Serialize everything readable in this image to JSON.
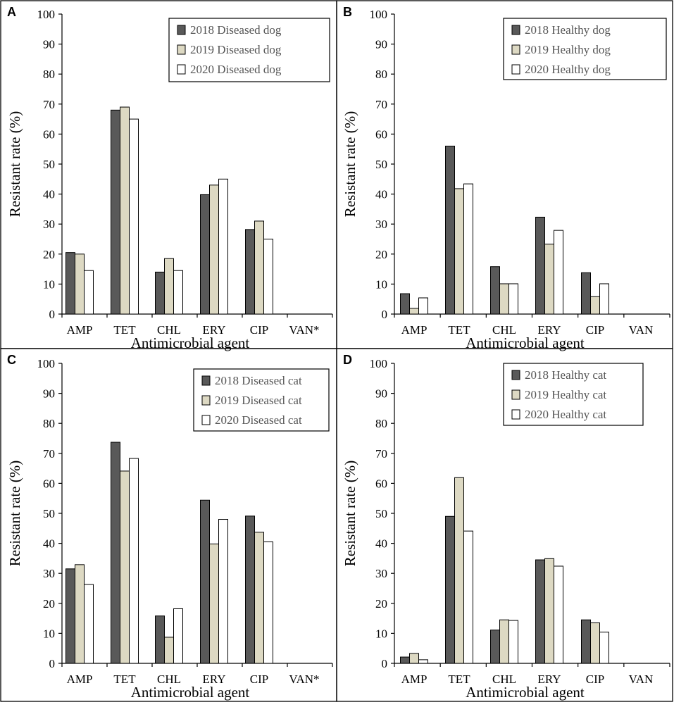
{
  "colors": {
    "s2018": "#595959",
    "s2019": "#ddd9c3",
    "s2020": "#ffffff",
    "frame": "#000000"
  },
  "chart_data": [
    {
      "panel": "A",
      "type": "bar",
      "categories": [
        "AMP",
        "TET",
        "CHL",
        "ERY",
        "CIP",
        "VAN*"
      ],
      "series": [
        {
          "name": "2018 Diseased dog",
          "values": [
            20.5,
            68,
            14,
            39.8,
            28.2,
            0
          ]
        },
        {
          "name": "2019 Diseased dog",
          "values": [
            20,
            69,
            18.5,
            43,
            31,
            0
          ]
        },
        {
          "name": "2020 Diseased dog",
          "values": [
            14.5,
            65,
            14.5,
            45,
            25,
            0
          ]
        }
      ],
      "xlabel": "Antimicrobial agent",
      "ylabel": "Resistant rate (%)",
      "ylim": [
        0,
        100
      ],
      "yticks": [
        0,
        10,
        20,
        30,
        40,
        50,
        60,
        70,
        80,
        90,
        100
      ],
      "legend_position": "top-right"
    },
    {
      "panel": "B",
      "type": "bar",
      "categories": [
        "AMP",
        "TET",
        "CHL",
        "ERY",
        "CIP",
        "VAN"
      ],
      "series": [
        {
          "name": "2018 Healthy dog",
          "values": [
            6.8,
            56,
            15.8,
            32.3,
            13.8,
            0
          ]
        },
        {
          "name": "2019 Healthy dog",
          "values": [
            1.9,
            41.8,
            10.1,
            23.3,
            5.8,
            0
          ]
        },
        {
          "name": "2020 Healthy dog",
          "values": [
            5.4,
            43.4,
            10.1,
            27.9,
            10.1,
            0
          ]
        }
      ],
      "xlabel": "Antimicrobial agent",
      "ylabel": "Resistant rate (%)",
      "ylim": [
        0,
        100
      ],
      "yticks": [
        0,
        10,
        20,
        30,
        40,
        50,
        60,
        70,
        80,
        90,
        100
      ],
      "legend_position": "top-right"
    },
    {
      "panel": "C",
      "type": "bar",
      "categories": [
        "AMP",
        "TET",
        "CHL",
        "ERY",
        "CIP",
        "VAN*"
      ],
      "series": [
        {
          "name": "2018 Diseased cat",
          "values": [
            31.5,
            73.7,
            15.8,
            54.4,
            49.1,
            0
          ]
        },
        {
          "name": "2019 Diseased cat",
          "values": [
            32.9,
            64.1,
            8.7,
            39.8,
            43.7,
            0
          ]
        },
        {
          "name": "2020 Diseased cat",
          "values": [
            26.3,
            68.3,
            18.2,
            48,
            40.5,
            0
          ]
        }
      ],
      "xlabel": "Antimicrobial agent",
      "ylabel": "Resistant rate  (%)",
      "ylim": [
        0,
        100
      ],
      "yticks": [
        0,
        10,
        20,
        30,
        40,
        50,
        60,
        70,
        80,
        90,
        100
      ],
      "legend_position": "top-right"
    },
    {
      "panel": "D",
      "type": "bar",
      "categories": [
        "AMP",
        "TET",
        "CHL",
        "ERY",
        "CIP",
        "VAN"
      ],
      "series": [
        {
          "name": "2018 Healthy cat",
          "values": [
            2.1,
            49,
            11.1,
            34.5,
            14.5,
            0
          ]
        },
        {
          "name": "2019 Healthy cat",
          "values": [
            3.3,
            61.9,
            14.5,
            34.9,
            13.5,
            0
          ]
        },
        {
          "name": "2020 Healthy cat",
          "values": [
            1.2,
            44.1,
            14.3,
            32.4,
            10.4,
            0
          ]
        }
      ],
      "xlabel": "Antimicrobial agent",
      "ylabel": "Resistant rate  (%)",
      "ylim": [
        0,
        100
      ],
      "yticks": [
        0,
        10,
        20,
        30,
        40,
        50,
        60,
        70,
        80,
        90,
        100
      ],
      "legend_position": "top-right"
    }
  ]
}
